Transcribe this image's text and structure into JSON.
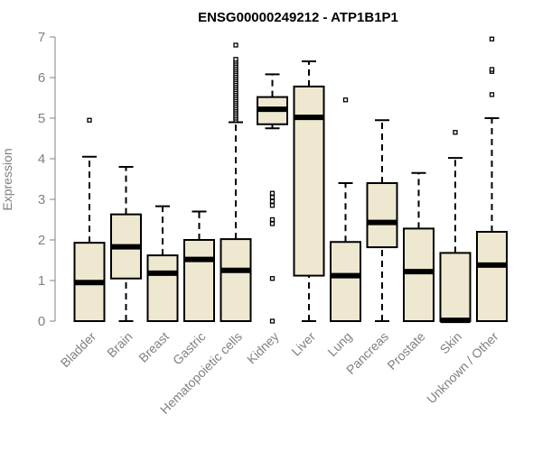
{
  "chart_data": {
    "type": "boxplot",
    "title": "ENSG00000249212 - ATP1B1P1",
    "xlabel": "",
    "ylabel": "Expression",
    "ylim": [
      0,
      7
    ],
    "yticks": [
      0,
      1,
      2,
      3,
      4,
      5,
      6,
      7
    ],
    "box_fill": "#eee8d0",
    "stroke": "#000000",
    "categories": [
      "Bladder",
      "Brain",
      "Breast",
      "Gastric",
      "Hematopoietic cells",
      "Kidney",
      "Liver",
      "Lung",
      "Pancreas",
      "Prostate",
      "Skin",
      "Unknown / Other"
    ],
    "series": [
      {
        "name": "Bladder",
        "whisker_low": 0.0,
        "q1": 0.0,
        "median": 0.95,
        "q3": 1.93,
        "whisker_high": 4.05,
        "outliers": [
          4.95
        ]
      },
      {
        "name": "Brain",
        "whisker_low": 0.0,
        "q1": 1.05,
        "median": 1.83,
        "q3": 2.63,
        "whisker_high": 3.8,
        "outliers": []
      },
      {
        "name": "Breast",
        "whisker_low": 0.0,
        "q1": 0.0,
        "median": 1.18,
        "q3": 1.62,
        "whisker_high": 2.83,
        "outliers": []
      },
      {
        "name": "Gastric",
        "whisker_low": 0.0,
        "q1": 0.0,
        "median": 1.52,
        "q3": 2.0,
        "whisker_high": 2.7,
        "outliers": []
      },
      {
        "name": "Hematopoietic cells",
        "whisker_low": 0.0,
        "q1": 0.0,
        "median": 1.25,
        "q3": 2.02,
        "whisker_high": 4.9,
        "outliers": [
          4.95,
          5.0,
          5.05,
          5.1,
          5.15,
          5.2,
          5.25,
          5.3,
          5.35,
          5.4,
          5.45,
          5.5,
          5.55,
          5.6,
          5.65,
          5.7,
          5.75,
          5.8,
          5.85,
          5.9,
          5.95,
          6.0,
          6.05,
          6.1,
          6.15,
          6.2,
          6.25,
          6.3,
          6.35,
          6.4,
          6.45,
          6.8
        ]
      },
      {
        "name": "Kidney",
        "whisker_low": 4.75,
        "q1": 4.85,
        "median": 5.22,
        "q3": 5.52,
        "whisker_high": 6.08,
        "outliers": [
          3.15,
          3.05,
          2.95,
          2.85,
          2.5,
          2.4,
          1.05,
          0.0
        ]
      },
      {
        "name": "Liver",
        "whisker_low": 0.0,
        "q1": 1.12,
        "median": 5.02,
        "q3": 5.78,
        "whisker_high": 6.4,
        "outliers": []
      },
      {
        "name": "Lung",
        "whisker_low": 0.0,
        "q1": 0.0,
        "median": 1.12,
        "q3": 1.95,
        "whisker_high": 3.4,
        "outliers": [
          5.45
        ]
      },
      {
        "name": "Pancreas",
        "whisker_low": 0.0,
        "q1": 1.82,
        "median": 2.43,
        "q3": 3.4,
        "whisker_high": 4.95,
        "outliers": []
      },
      {
        "name": "Prostate",
        "whisker_low": 0.0,
        "q1": 0.0,
        "median": 1.22,
        "q3": 2.28,
        "whisker_high": 3.65,
        "outliers": []
      },
      {
        "name": "Skin",
        "whisker_low": 0.0,
        "q1": 0.0,
        "median": 0.02,
        "q3": 1.68,
        "whisker_high": 4.02,
        "outliers": [
          4.65
        ]
      },
      {
        "name": "Unknown / Other",
        "whisker_low": 0.0,
        "q1": 0.0,
        "median": 1.38,
        "q3": 2.2,
        "whisker_high": 5.0,
        "outliers": [
          5.58,
          6.15,
          6.2,
          6.95
        ]
      }
    ]
  }
}
